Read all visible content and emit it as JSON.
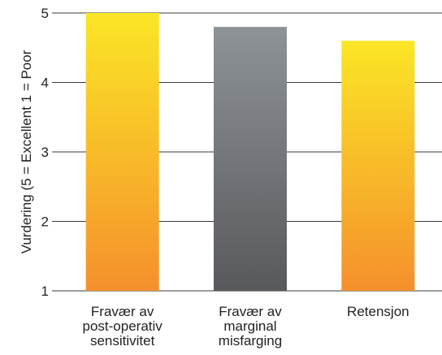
{
  "chart_data": {
    "type": "bar",
    "title": "",
    "xlabel": "",
    "ylabel": "Vurdering (5 = Excellent  1 = Poor",
    "ylim": [
      1,
      5
    ],
    "yticks": [
      "1",
      "2",
      "3",
      "4",
      "5"
    ],
    "grid": true,
    "categories": [
      [
        "Fravær av",
        "post-operativ",
        "sensitivitet"
      ],
      [
        "Fravær av",
        "marginal",
        "misfarging"
      ],
      [
        "Retensjon"
      ]
    ],
    "values": [
      5.0,
      4.8,
      4.6
    ],
    "bar_colors": [
      {
        "top": "#fbe626",
        "bottom": "#f5902c"
      },
      {
        "top": "#8e9398",
        "bottom": "#58595c"
      },
      {
        "top": "#fbe626",
        "bottom": "#f5902c"
      }
    ]
  }
}
